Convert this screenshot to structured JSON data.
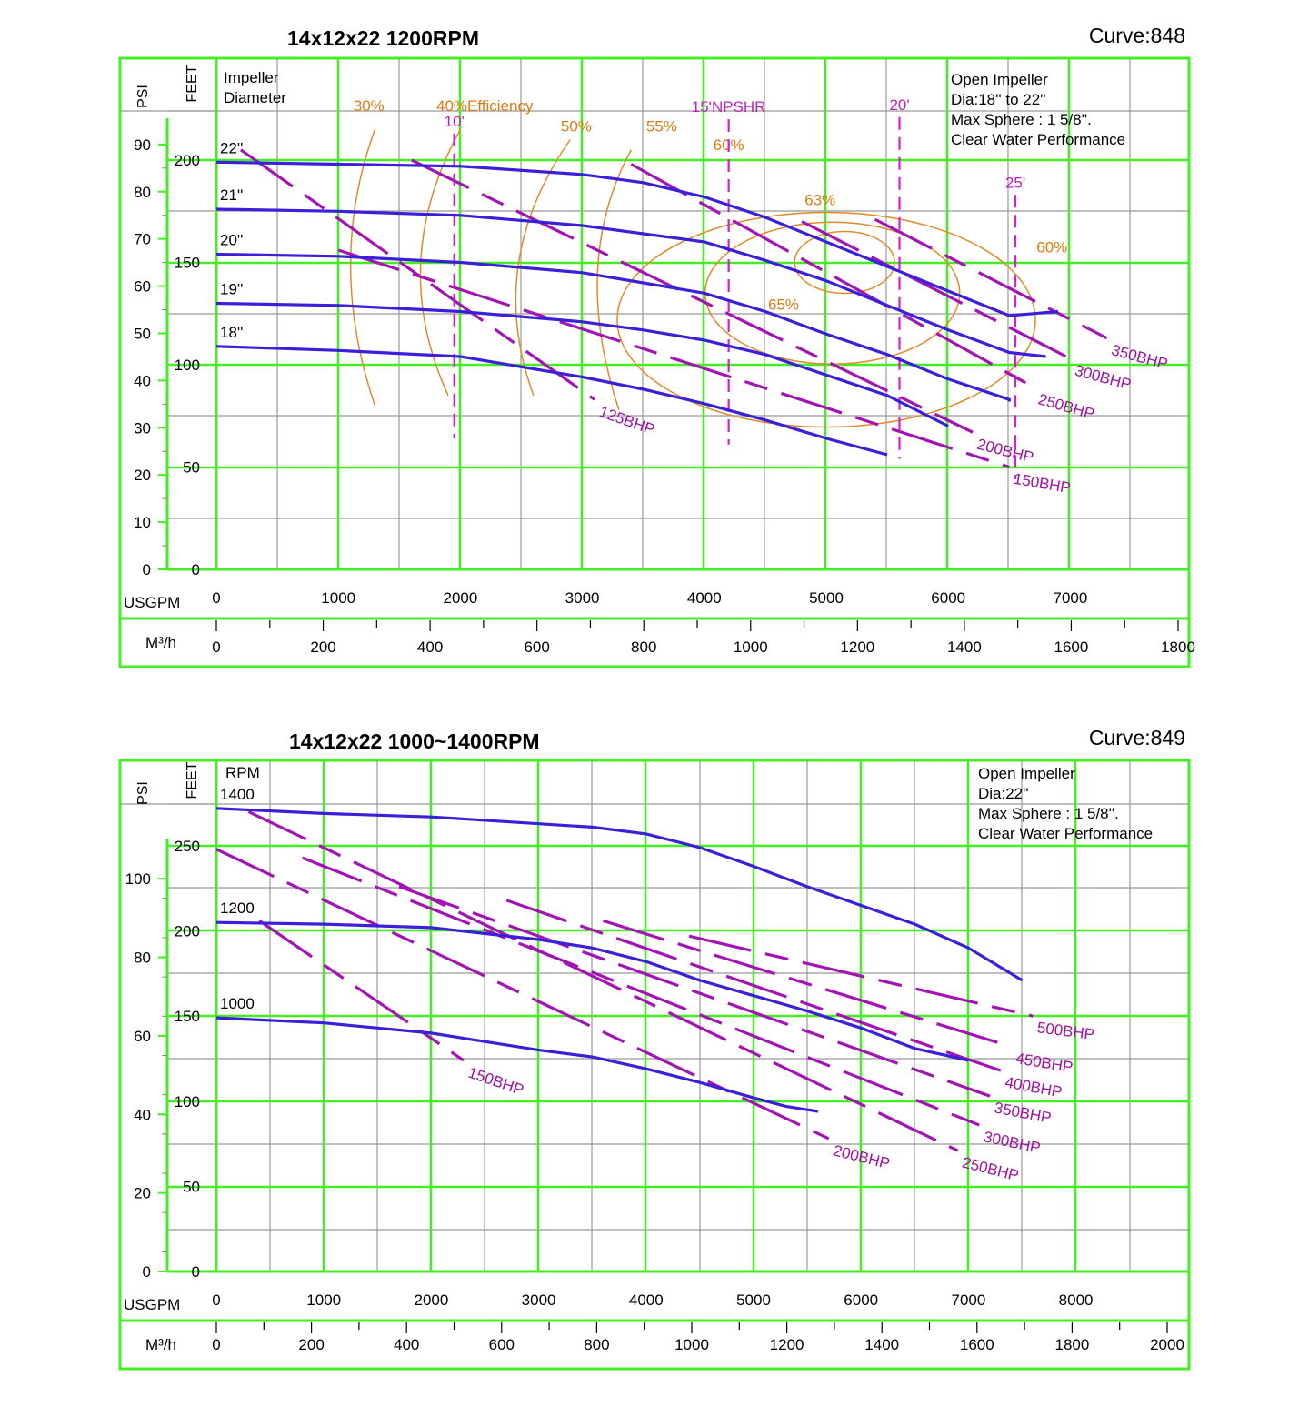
{
  "chart_data": [
    {
      "type": "line",
      "title": "14x12x22  1200RPM",
      "curve_label": "Curve:848",
      "note": [
        "Open Impeller",
        "Dia:18'' to 22''",
        "Max Sphere : 1 5/8''.",
        "Clear Water Performance"
      ],
      "xlabel": "USGPM",
      "x2label": "M³/h",
      "ylabel_left": "PSI",
      "ylabel_right": "FEET",
      "legend_title": [
        "Impeller",
        "Diameter"
      ],
      "xlim": [
        0,
        8000
      ],
      "xticks": [
        0,
        1000,
        2000,
        3000,
        4000,
        5000,
        6000,
        7000
      ],
      "x2ticks": [
        0,
        200,
        400,
        600,
        800,
        1000,
        1200,
        1400,
        1600,
        1800
      ],
      "ylim_feet": [
        0,
        250
      ],
      "yticks_feet": [
        0,
        50,
        100,
        150,
        200
      ],
      "yticks_psi": [
        0,
        10,
        20,
        30,
        40,
        50,
        60,
        70,
        80,
        90
      ],
      "grid": true,
      "series": [
        {
          "name": "22''",
          "kind": "head",
          "color": "#3a20d8",
          "points": [
            [
              0,
              199
            ],
            [
              1000,
              198
            ],
            [
              2000,
              197
            ],
            [
              3000,
              193
            ],
            [
              3500,
              189
            ],
            [
              4000,
              182
            ],
            [
              4500,
              172
            ],
            [
              5000,
              160
            ],
            [
              5500,
              148
            ],
            [
              6000,
              136
            ],
            [
              6500,
              124
            ],
            [
              6900,
              126
            ]
          ]
        },
        {
          "name": "21''",
          "kind": "head",
          "color": "#3a20d8",
          "points": [
            [
              0,
              176
            ],
            [
              1000,
              175
            ],
            [
              2000,
              173
            ],
            [
              3000,
              168
            ],
            [
              3500,
              164
            ],
            [
              4000,
              160
            ],
            [
              4500,
              151
            ],
            [
              5000,
              141
            ],
            [
              5500,
              129
            ],
            [
              6000,
              117
            ],
            [
              6500,
              106
            ],
            [
              6800,
              104
            ]
          ]
        },
        {
          "name": "20''",
          "kind": "head",
          "color": "#3a20d8",
          "points": [
            [
              0,
              154
            ],
            [
              1000,
              153
            ],
            [
              2000,
              150
            ],
            [
              3000,
              145
            ],
            [
              3500,
              140
            ],
            [
              4000,
              135
            ],
            [
              4500,
              126
            ],
            [
              5000,
              115
            ],
            [
              5500,
              105
            ],
            [
              6000,
              93
            ],
            [
              6500,
              83
            ],
            [
              6500,
              82
            ]
          ]
        },
        {
          "name": "19''",
          "kind": "head",
          "color": "#3a20d8",
          "points": [
            [
              0,
              130
            ],
            [
              1000,
              129
            ],
            [
              2000,
              126
            ],
            [
              3000,
              121
            ],
            [
              3500,
              117
            ],
            [
              4000,
              112
            ],
            [
              4500,
              105
            ],
            [
              5000,
              95
            ],
            [
              5500,
              85
            ],
            [
              6000,
              70
            ]
          ]
        },
        {
          "name": "18''",
          "kind": "head",
          "color": "#3a20d8",
          "points": [
            [
              0,
              109
            ],
            [
              1000,
              107
            ],
            [
              2000,
              104
            ],
            [
              2500,
              99
            ],
            [
              3000,
              94
            ],
            [
              3500,
              88
            ],
            [
              4000,
              81
            ],
            [
              4500,
              73
            ],
            [
              5000,
              64
            ],
            [
              5500,
              56
            ]
          ]
        }
      ],
      "bhp_lines": [
        {
          "name": "125BHP",
          "points": [
            [
              200,
              205
            ],
            [
              3100,
              83
            ]
          ]
        },
        {
          "name": "150BHP",
          "points": [
            [
              1000,
              156
            ],
            [
              6500,
              50
            ]
          ]
        },
        {
          "name": "200BHP",
          "points": [
            [
              1600,
              200
            ],
            [
              6200,
              67
            ]
          ]
        },
        {
          "name": "250BHP",
          "points": [
            [
              3400,
              198
            ],
            [
              6700,
              89
            ]
          ]
        },
        {
          "name": "300BHP",
          "points": [
            [
              4800,
              170
            ],
            [
              7000,
              103
            ]
          ]
        },
        {
          "name": "350BHP",
          "points": [
            [
              5400,
              171
            ],
            [
              7300,
              113
            ]
          ]
        }
      ],
      "efficiency_labels": [
        {
          "label": "30%",
          "x": 1250,
          "y": 224
        },
        {
          "label": "40%Efficiency",
          "x": 2200,
          "y": 224
        },
        {
          "label": "50%",
          "x": 2950,
          "y": 214
        },
        {
          "label": "55%",
          "x": 3650,
          "y": 214
        },
        {
          "label": "60%",
          "x": 4200,
          "y": 205
        },
        {
          "label": "63%",
          "x": 4950,
          "y": 178
        },
        {
          "label": "65%",
          "x": 4650,
          "y": 127
        },
        {
          "label": "60%",
          "x": 6850,
          "y": 155
        }
      ],
      "npsh_lines": [
        {
          "label": "10'",
          "x": 1950,
          "y_top": 213,
          "y_bottom": 64
        },
        {
          "label": "15'NPSHR",
          "x": 4200,
          "y_top": 220,
          "y_bottom": 61
        },
        {
          "label": "20'",
          "x": 5600,
          "y_top": 221,
          "y_bottom": 54
        },
        {
          "label": "25'",
          "x": 6550,
          "y_top": 183,
          "y_bottom": 44
        }
      ]
    },
    {
      "type": "line",
      "title": "14x12x22  1000~1400RPM",
      "curve_label": "Curve:849",
      "note": [
        "Open Impeller",
        "Dia:22''",
        "Max Sphere : 1 5/8''.",
        "Clear Water Performance"
      ],
      "xlabel": "USGPM",
      "x2label": "M³/h",
      "ylabel_left": "PSI",
      "ylabel_right": "FEET",
      "legend_title": [
        "RPM"
      ],
      "xlim": [
        0,
        9000
      ],
      "xticks": [
        0,
        1000,
        2000,
        3000,
        4000,
        5000,
        6000,
        7000,
        8000
      ],
      "x2ticks": [
        0,
        200,
        400,
        600,
        800,
        1000,
        1200,
        1400,
        1600,
        1800,
        2000
      ],
      "ylim_feet": [
        0,
        275
      ],
      "yticks_feet": [
        0,
        50,
        100,
        150,
        200,
        250
      ],
      "yticks_psi": [
        0,
        20,
        40,
        60,
        80,
        100
      ],
      "grid": true,
      "series": [
        {
          "name": "1400",
          "kind": "head",
          "color": "#3a20d8",
          "points": [
            [
              0,
              272
            ],
            [
              1000,
              269
            ],
            [
              2000,
              267
            ],
            [
              3000,
              263
            ],
            [
              3500,
              261
            ],
            [
              4000,
              257
            ],
            [
              4500,
              249
            ],
            [
              5000,
              238
            ],
            [
              5500,
              226
            ],
            [
              6000,
              215
            ],
            [
              6500,
              204
            ],
            [
              7000,
              190
            ],
            [
              7500,
              171
            ]
          ]
        },
        {
          "name": "1200",
          "kind": "head",
          "color": "#3a20d8",
          "points": [
            [
              0,
              205
            ],
            [
              1000,
              204
            ],
            [
              2000,
              202
            ],
            [
              3000,
              195
            ],
            [
              3500,
              190
            ],
            [
              4000,
              182
            ],
            [
              4500,
              171
            ],
            [
              5000,
              162
            ],
            [
              5500,
              153
            ],
            [
              6000,
              143
            ],
            [
              6500,
              131
            ],
            [
              7000,
              124
            ]
          ]
        },
        {
          "name": "1000",
          "kind": "head",
          "color": "#3a20d8",
          "points": [
            [
              0,
              149
            ],
            [
              1000,
              146
            ],
            [
              2000,
              140
            ],
            [
              3000,
              130
            ],
            [
              3500,
              126
            ],
            [
              4000,
              119
            ],
            [
              4500,
              111
            ],
            [
              5000,
              102
            ],
            [
              5300,
              97
            ],
            [
              5600,
              94
            ]
          ]
        }
      ],
      "bhp_lines": [
        {
          "name": "150BHP",
          "points": [
            [
              400,
              206
            ],
            [
              2300,
              124
            ]
          ]
        },
        {
          "name": "200BHP",
          "points": [
            [
              0,
              248
            ],
            [
              5700,
              78
            ]
          ]
        },
        {
          "name": "250BHP",
          "points": [
            [
              300,
              270
            ],
            [
              6900,
              71
            ]
          ]
        },
        {
          "name": "300BHP",
          "points": [
            [
              800,
              243
            ],
            [
              7100,
              86
            ]
          ]
        },
        {
          "name": "350BHP",
          "points": [
            [
              1700,
              226
            ],
            [
              7200,
              103
            ]
          ]
        },
        {
          "name": "400BHP",
          "points": [
            [
              2700,
              218
            ],
            [
              7300,
              118
            ]
          ]
        },
        {
          "name": "450BHP",
          "points": [
            [
              3600,
              206
            ],
            [
              7400,
              132
            ]
          ]
        },
        {
          "name": "500BHP",
          "points": [
            [
              4400,
              197
            ],
            [
              7600,
              150
            ]
          ]
        }
      ]
    }
  ]
}
